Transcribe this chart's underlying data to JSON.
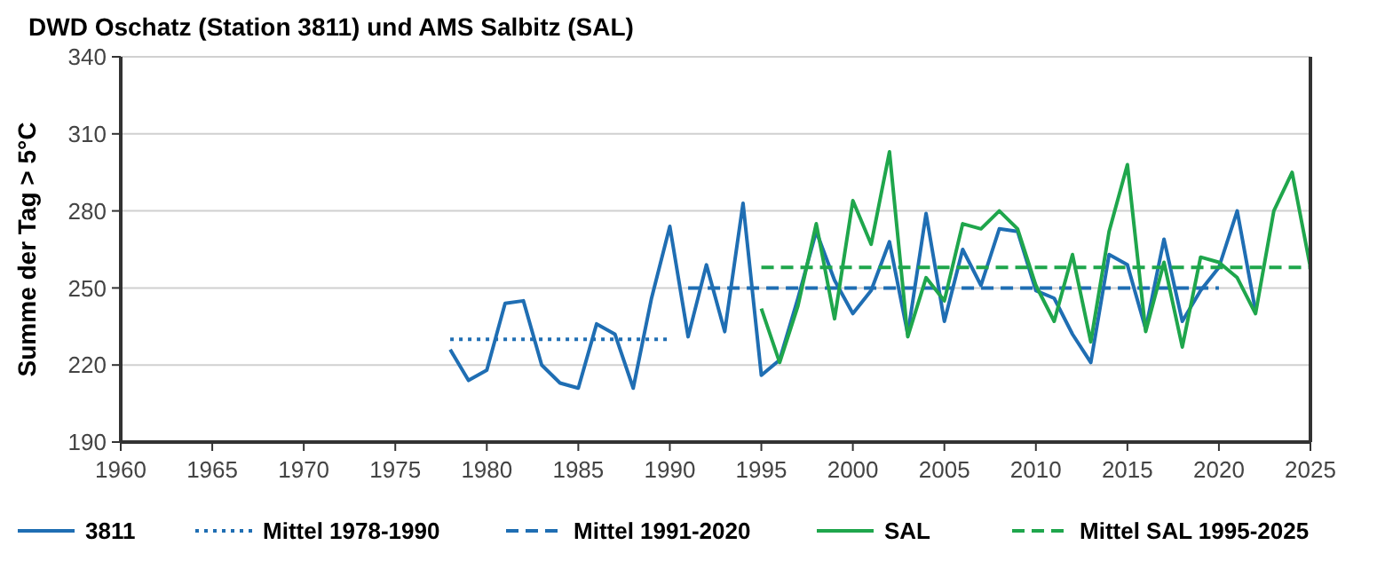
{
  "chart_data": {
    "type": "line",
    "title": "DWD Oschatz (Station 3811) und AMS Salbitz (SAL)",
    "ylabel": "Summe der Tag > 5°C",
    "xlim": [
      1960,
      2025
    ],
    "xticks": [
      1960,
      1965,
      1970,
      1975,
      1980,
      1985,
      1990,
      1995,
      2000,
      2005,
      2010,
      2015,
      2020,
      2025
    ],
    "ylim": [
      190,
      340
    ],
    "yticks": [
      190,
      220,
      250,
      280,
      310,
      340
    ],
    "grid": "y",
    "legend": "bottom",
    "marker": "none",
    "series": [
      {
        "name": "3811",
        "color": "#1f6eb3",
        "line_style": "solid",
        "x": [
          1978,
          1979,
          1980,
          1981,
          1982,
          1983,
          1984,
          1985,
          1986,
          1987,
          1988,
          1989,
          1990,
          1991,
          1992,
          1993,
          1994,
          1995,
          1996,
          1997,
          1998,
          1999,
          2000,
          2001,
          2002,
          2003,
          2004,
          2005,
          2006,
          2007,
          2008,
          2009,
          2010,
          2011,
          2012,
          2013,
          2014,
          2015,
          2016,
          2017,
          2018,
          2019,
          2020,
          2021,
          2022
        ],
        "values": [
          226,
          214,
          218,
          244,
          245,
          220,
          213,
          211,
          236,
          232,
          211,
          246,
          274,
          231,
          259,
          233,
          283,
          216,
          222,
          246,
          272,
          253,
          240,
          249,
          268,
          232,
          279,
          237,
          265,
          251,
          273,
          272,
          249,
          246,
          232,
          221,
          263,
          259,
          234,
          269,
          237,
          249,
          258,
          280,
          241
        ]
      },
      {
        "name": "Mittel 1978-1990",
        "color": "#1f6eb3",
        "line_style": "dotted",
        "x": [
          1978,
          1990
        ],
        "values": [
          230,
          230
        ]
      },
      {
        "name": "Mittel 1991-2020",
        "color": "#1f6eb3",
        "line_style": "dashed",
        "x": [
          1991,
          2020
        ],
        "values": [
          250,
          250
        ]
      },
      {
        "name": "SAL",
        "color": "#1fa64c",
        "line_style": "solid",
        "x": [
          1995,
          1996,
          1997,
          1998,
          1999,
          2000,
          2001,
          2002,
          2003,
          2004,
          2005,
          2006,
          2007,
          2008,
          2009,
          2010,
          2011,
          2012,
          2013,
          2014,
          2015,
          2016,
          2017,
          2018,
          2019,
          2020,
          2021,
          2022,
          2023,
          2024,
          2025
        ],
        "values": [
          242,
          221,
          243,
          275,
          238,
          284,
          267,
          303,
          231,
          254,
          245,
          275,
          273,
          280,
          273,
          251,
          237,
          263,
          229,
          272,
          298,
          233,
          260,
          227,
          262,
          260,
          254,
          240,
          280,
          295,
          258
        ]
      },
      {
        "name": "Mittel SAL 1995-2025",
        "color": "#1fa64c",
        "line_style": "dashed",
        "x": [
          1995,
          2025
        ],
        "values": [
          258,
          258
        ]
      }
    ]
  }
}
